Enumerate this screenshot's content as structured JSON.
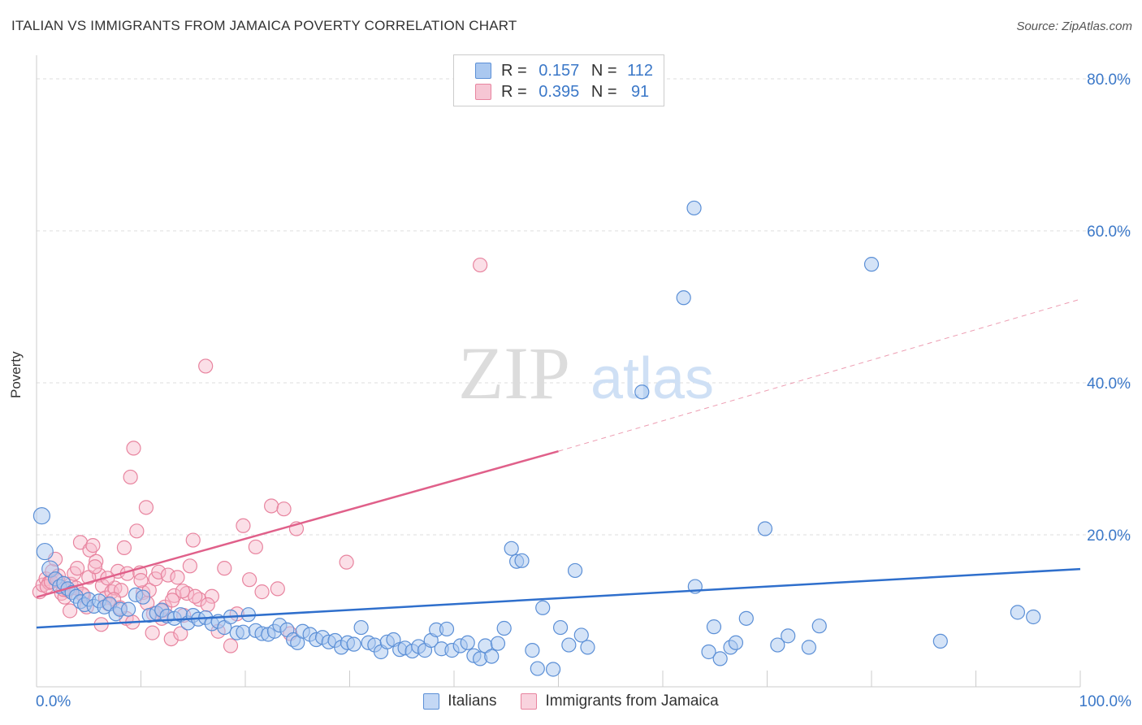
{
  "header": {
    "title": "ITALIAN VS IMMIGRANTS FROM JAMAICA POVERTY CORRELATION CHART",
    "source": "Source: ZipAtlas.com"
  },
  "legend": {
    "series1": {
      "r_label": "R =",
      "r_value": "0.157",
      "n_label": "N =",
      "n_value": "112"
    },
    "series2": {
      "r_label": "R =",
      "r_value": "0.395",
      "n_label": "N =",
      "n_value": "91"
    }
  },
  "bottom_legend": {
    "series1": "Italians",
    "series2": "Immigrants from Jamaica"
  },
  "watermark": {
    "part1": "ZIP",
    "part2": "atlas"
  },
  "colors": {
    "blue_fill": "#aac8f0",
    "blue_stroke": "#5b8fd6",
    "blue_line": "#2f6fcc",
    "pink_fill": "#f6b8ca",
    "pink_stroke": "#e8849f",
    "pink_line": "#e0608a",
    "axis_text": "#3b78c8",
    "grid": "#dddddd"
  },
  "chart_data": {
    "type": "scatter",
    "title": "ITALIAN VS IMMIGRANTS FROM JAMAICA POVERTY CORRELATION CHART",
    "xlabel": "",
    "ylabel": "Poverty",
    "xlim": [
      0,
      100
    ],
    "ylim": [
      0,
      80
    ],
    "x_tick_labels": [
      "0.0%",
      "100.0%"
    ],
    "y_ticks": [
      20,
      40,
      60,
      80
    ],
    "y_tick_labels": [
      "20.0%",
      "40.0%",
      "60.0%",
      "80.0%"
    ],
    "grid": true,
    "series": [
      {
        "name": "Italians",
        "color": "blue",
        "trendline": {
          "x": [
            0,
            100
          ],
          "y": [
            7.8,
            15.5
          ]
        },
        "points": [
          [
            0.5,
            22.5
          ],
          [
            0.8,
            17.8
          ],
          [
            1.3,
            15.5
          ],
          [
            1.8,
            14.2
          ],
          [
            2.2,
            13.2
          ],
          [
            2.6,
            13.6
          ],
          [
            3,
            12.9
          ],
          [
            3.4,
            12.4
          ],
          [
            3.8,
            11.9
          ],
          [
            4.2,
            11.2
          ],
          [
            4.6,
            10.8
          ],
          [
            5,
            11.5
          ],
          [
            5.5,
            10.6
          ],
          [
            6,
            11.3
          ],
          [
            6.5,
            10.5
          ],
          [
            7,
            10.9
          ],
          [
            7.6,
            9.6
          ],
          [
            8,
            10.2
          ],
          [
            8.8,
            10.2
          ],
          [
            9.5,
            12.1
          ],
          [
            10.2,
            11.8
          ],
          [
            10.8,
            9.4
          ],
          [
            11.5,
            9.7
          ],
          [
            12,
            10.1
          ],
          [
            12.5,
            9.3
          ],
          [
            13.2,
            9.0
          ],
          [
            13.8,
            9.5
          ],
          [
            14.5,
            8.4
          ],
          [
            15,
            9.4
          ],
          [
            15.5,
            8.9
          ],
          [
            16.2,
            9.1
          ],
          [
            16.8,
            8.3
          ],
          [
            17.4,
            8.6
          ],
          [
            18,
            7.8
          ],
          [
            18.6,
            9.2
          ],
          [
            19.2,
            7.1
          ],
          [
            19.8,
            7.2
          ],
          [
            20.3,
            9.5
          ],
          [
            21,
            7.4
          ],
          [
            21.6,
            7.0
          ],
          [
            22.2,
            6.9
          ],
          [
            22.8,
            7.3
          ],
          [
            23.3,
            8.1
          ],
          [
            24,
            7.5
          ],
          [
            24.6,
            6.2
          ],
          [
            25,
            5.8
          ],
          [
            25.5,
            7.3
          ],
          [
            26.2,
            6.9
          ],
          [
            26.8,
            6.2
          ],
          [
            27.4,
            6.5
          ],
          [
            28,
            5.9
          ],
          [
            28.6,
            6.1
          ],
          [
            29.2,
            5.2
          ],
          [
            29.8,
            5.8
          ],
          [
            30.4,
            5.6
          ],
          [
            31.1,
            7.8
          ],
          [
            31.8,
            5.8
          ],
          [
            32.4,
            5.5
          ],
          [
            33,
            4.6
          ],
          [
            33.6,
            5.9
          ],
          [
            34.2,
            6.2
          ],
          [
            34.8,
            4.9
          ],
          [
            35.3,
            5.1
          ],
          [
            36,
            4.7
          ],
          [
            36.6,
            5.3
          ],
          [
            37.2,
            4.8
          ],
          [
            37.8,
            6.1
          ],
          [
            38.3,
            7.5
          ],
          [
            38.8,
            5.0
          ],
          [
            39.3,
            7.6
          ],
          [
            39.8,
            4.8
          ],
          [
            40.6,
            5.4
          ],
          [
            41.3,
            5.8
          ],
          [
            41.9,
            4.1
          ],
          [
            42.5,
            3.7
          ],
          [
            43,
            5.4
          ],
          [
            43.6,
            4.0
          ],
          [
            44.2,
            5.7
          ],
          [
            44.8,
            7.7
          ],
          [
            45.5,
            18.2
          ],
          [
            46,
            16.5
          ],
          [
            46.5,
            16.6
          ],
          [
            47.5,
            4.8
          ],
          [
            48,
            2.4
          ],
          [
            48.5,
            10.4
          ],
          [
            49.5,
            2.3
          ],
          [
            50.2,
            7.8
          ],
          [
            51,
            5.5
          ],
          [
            51.6,
            15.3
          ],
          [
            52.2,
            6.8
          ],
          [
            52.8,
            5.2
          ],
          [
            58,
            38.8
          ],
          [
            62,
            51.2
          ],
          [
            63.1,
            13.2
          ],
          [
            64.4,
            4.6
          ],
          [
            64.9,
            7.9
          ],
          [
            65.5,
            3.7
          ],
          [
            66.5,
            5.2
          ],
          [
            67,
            5.8
          ],
          [
            68,
            9.0
          ],
          [
            69.8,
            20.8
          ],
          [
            71,
            5.5
          ],
          [
            72,
            6.7
          ],
          [
            74,
            5.2
          ],
          [
            63,
            63.0
          ],
          [
            75,
            8.0
          ],
          [
            80,
            55.6
          ],
          [
            86.6,
            6.0
          ],
          [
            94,
            9.8
          ],
          [
            95.5,
            9.2
          ]
        ]
      },
      {
        "name": "Immigrants from Jamaica",
        "color": "pink",
        "trendline": {
          "x": [
            0,
            50
          ],
          "y": [
            11.8,
            31.0
          ]
        },
        "trendline_dashed": {
          "x": [
            50,
            100
          ],
          "y": [
            31.0,
            51.0
          ]
        },
        "points": [
          [
            0.3,
            12.5
          ],
          [
            0.6,
            13.4
          ],
          [
            0.9,
            14.2
          ],
          [
            1.2,
            13.7
          ],
          [
            1.5,
            15.2
          ],
          [
            1.8,
            16.8
          ],
          [
            2.1,
            14.6
          ],
          [
            2.4,
            12.3
          ],
          [
            2.7,
            11.8
          ],
          [
            3,
            12.7
          ],
          [
            3.3,
            13.5
          ],
          [
            3.6,
            14.9
          ],
          [
            3.9,
            15.6
          ],
          [
            4.2,
            19.0
          ],
          [
            4.5,
            12.0
          ],
          [
            4.8,
            10.5
          ],
          [
            5.1,
            18.0
          ],
          [
            5.4,
            18.6
          ],
          [
            5.7,
            16.5
          ],
          [
            6,
            14.7
          ],
          [
            6.3,
            13.3
          ],
          [
            6.6,
            11.7
          ],
          [
            6.9,
            10.9
          ],
          [
            7.2,
            12.5
          ],
          [
            7.5,
            13.0
          ],
          [
            7.8,
            15.2
          ],
          [
            8.1,
            12.7
          ],
          [
            8.4,
            18.3
          ],
          [
            8.7,
            14.9
          ],
          [
            9.0,
            27.6
          ],
          [
            9.3,
            31.4
          ],
          [
            9.6,
            20.5
          ],
          [
            9.9,
            15.0
          ],
          [
            10.2,
            12.4
          ],
          [
            10.5,
            23.6
          ],
          [
            10.8,
            12.7
          ],
          [
            11.1,
            7.1
          ],
          [
            11.4,
            14.2
          ],
          [
            11.7,
            15.1
          ],
          [
            12.0,
            9.0
          ],
          [
            12.3,
            10.5
          ],
          [
            12.6,
            14.7
          ],
          [
            12.9,
            6.3
          ],
          [
            13.2,
            12.0
          ],
          [
            13.5,
            14.4
          ],
          [
            13.8,
            7.0
          ],
          [
            14.1,
            9.4
          ],
          [
            14.4,
            12.3
          ],
          [
            14.7,
            15.9
          ],
          [
            15.0,
            19.3
          ],
          [
            15.6,
            11.5
          ],
          [
            16.2,
            42.2
          ],
          [
            16.8,
            11.9
          ],
          [
            17.4,
            7.3
          ],
          [
            18.0,
            15.6
          ],
          [
            18.6,
            5.4
          ],
          [
            19.2,
            9.6
          ],
          [
            19.8,
            21.2
          ],
          [
            20.4,
            14.1
          ],
          [
            21.0,
            18.4
          ],
          [
            21.6,
            12.5
          ],
          [
            22.5,
            23.8
          ],
          [
            23.1,
            12.9
          ],
          [
            23.7,
            23.4
          ],
          [
            24.3,
            7.0
          ],
          [
            24.9,
            20.8
          ],
          [
            1.0,
            13.2
          ],
          [
            1.4,
            13.8
          ],
          [
            2.0,
            14.0
          ],
          [
            2.6,
            12.8
          ],
          [
            3.2,
            10.0
          ],
          [
            3.8,
            13.0
          ],
          [
            4.4,
            12.2
          ],
          [
            5.0,
            14.4
          ],
          [
            5.6,
            15.8
          ],
          [
            6.2,
            8.2
          ],
          [
            6.8,
            14.3
          ],
          [
            7.4,
            11.5
          ],
          [
            8.0,
            10.4
          ],
          [
            8.6,
            9.0
          ],
          [
            9.2,
            8.5
          ],
          [
            10.0,
            14.0
          ],
          [
            10.6,
            11.0
          ],
          [
            11.2,
            9.6
          ],
          [
            12.0,
            10.0
          ],
          [
            13.0,
            11.4
          ],
          [
            14.0,
            12.6
          ],
          [
            15.2,
            11.9
          ],
          [
            16.4,
            10.8
          ],
          [
            29.7,
            16.4
          ],
          [
            42.5,
            55.5
          ]
        ]
      }
    ]
  }
}
